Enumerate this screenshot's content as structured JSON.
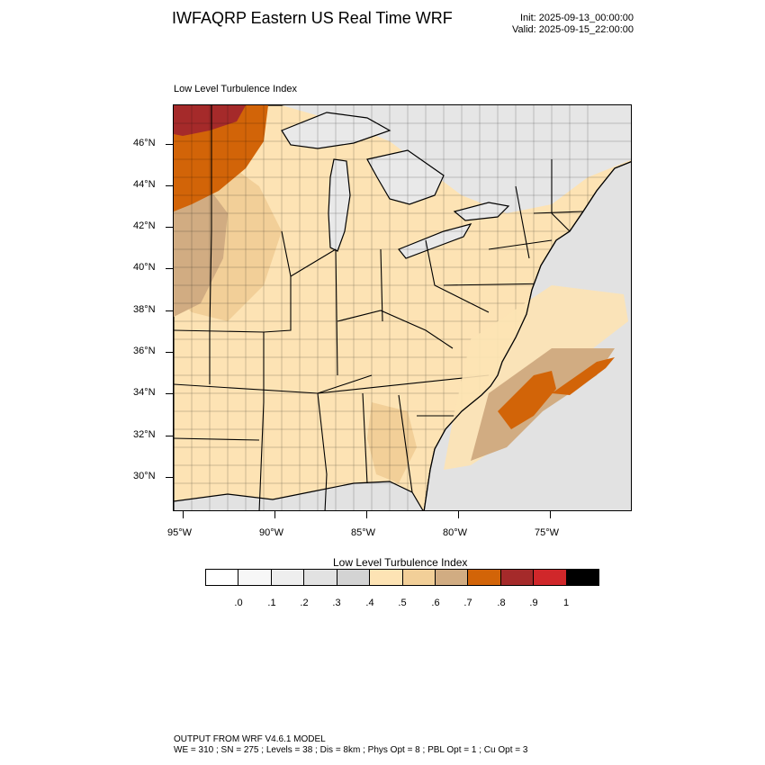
{
  "header": {
    "title": "IWFAQRP Eastern US Real Time WRF",
    "init": "Init: 2025-09-13_00:00:00",
    "valid": "Valid: 2025-09-15_22:00:00"
  },
  "map": {
    "field_label": "Low Level Turbulence Index",
    "lat_labels": [
      "46°N",
      "44°N",
      "42°N",
      "40°N",
      "38°N",
      "36°N",
      "34°N",
      "32°N",
      "30°N"
    ],
    "lon_labels": [
      "95°W",
      "90°W",
      "85°W",
      "80°W",
      "75°W"
    ],
    "colors": {
      "water": "#e2e2e2",
      "lakes": "#e9e9e9",
      "land_low": "#fde3b4",
      "land_mid": "#f2cf98",
      "land_high": "#d1ac82",
      "hot": "#d26408",
      "very_hot": "#a52a2a",
      "borders": "#000000"
    }
  },
  "colorbar": {
    "title": "Low Level Turbulence Index",
    "colors": [
      "#ffffff",
      "#f7f7f7",
      "#eeeeee",
      "#e2e2e2",
      "#d3d3d3",
      "#fde3b4",
      "#f2cf98",
      "#d1ac82",
      "#d26408",
      "#a52a2a",
      "#d0272a",
      "#000000"
    ],
    "labels": [
      ".0",
      ".1",
      ".2",
      ".3",
      ".4",
      ".5",
      ".6",
      ".7",
      ".8",
      ".9",
      "1"
    ]
  },
  "footer": {
    "line1": "OUTPUT FROM WRF V4.6.1 MODEL",
    "line2": "WE = 310 ; SN = 275 ; Levels = 38 ; Dis = 8km ; Phys Opt = 8 ; PBL Opt = 1 ; Cu Opt = 3"
  }
}
